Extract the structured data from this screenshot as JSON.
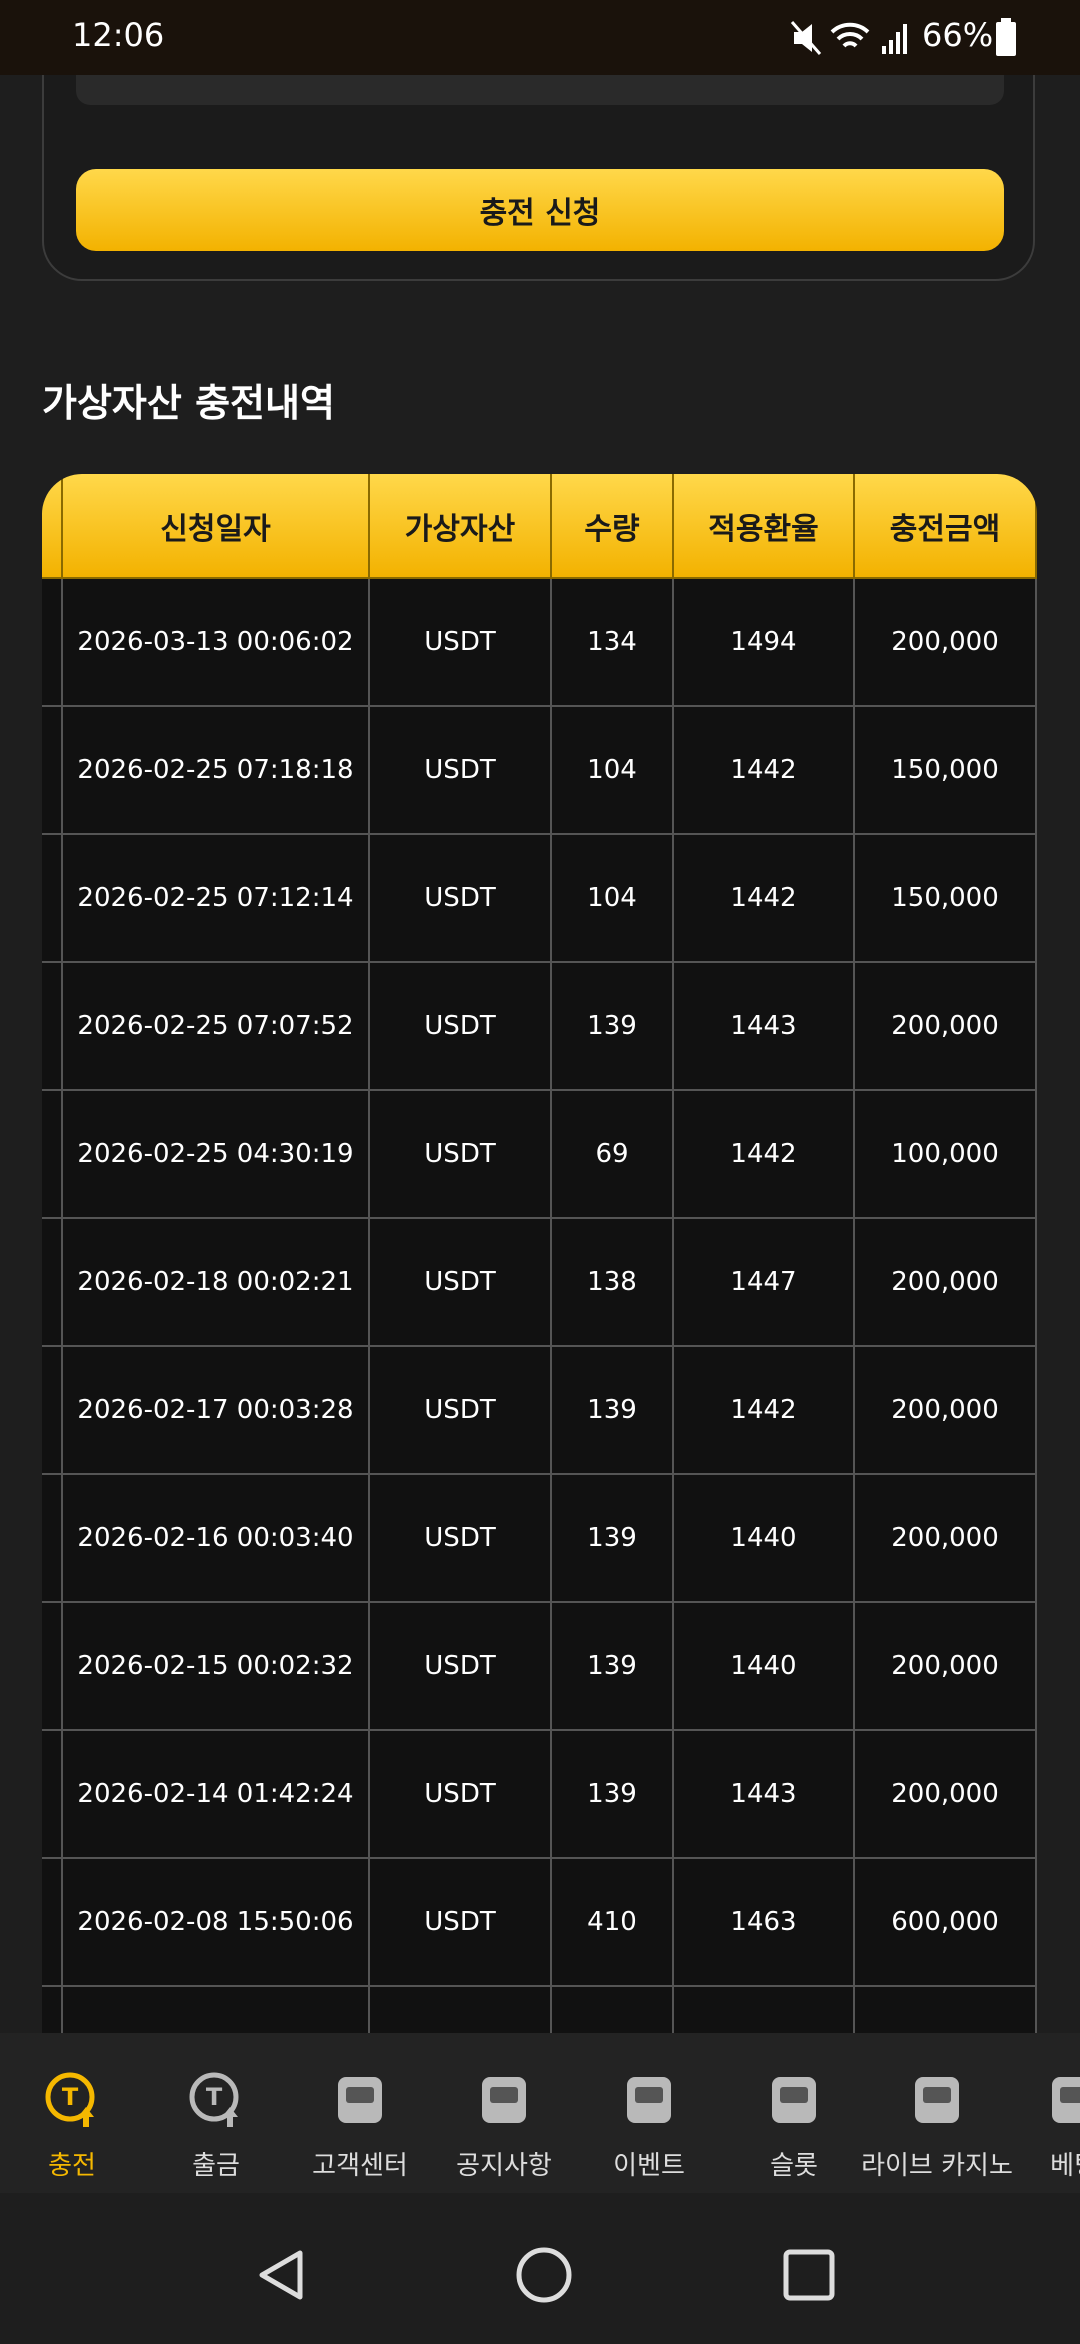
{
  "status": {
    "time": "12:06",
    "battery": "66%"
  },
  "button": "충전 신청",
  "heading": "가상자산 충전내역",
  "table": {
    "headers": [
      "신청일자",
      "가상자산",
      "수량",
      "적용환율",
      "충전금액"
    ],
    "rows": [
      [
        "2026-03-13 00:06:02",
        "USDT",
        "134",
        "1494",
        "200,000"
      ],
      [
        "2026-02-25 07:18:18",
        "USDT",
        "104",
        "1442",
        "150,000"
      ],
      [
        "2026-02-25 07:12:14",
        "USDT",
        "104",
        "1442",
        "150,000"
      ],
      [
        "2026-02-25 07:07:52",
        "USDT",
        "139",
        "1443",
        "200,000"
      ],
      [
        "2026-02-25 04:30:19",
        "USDT",
        "69",
        "1442",
        "100,000"
      ],
      [
        "2026-02-18 00:02:21",
        "USDT",
        "138",
        "1447",
        "200,000"
      ],
      [
        "2026-02-17 00:03:28",
        "USDT",
        "139",
        "1442",
        "200,000"
      ],
      [
        "2026-02-16 00:03:40",
        "USDT",
        "139",
        "1440",
        "200,000"
      ],
      [
        "2026-02-15 00:02:32",
        "USDT",
        "139",
        "1440",
        "200,000"
      ],
      [
        "2026-02-14 01:42:24",
        "USDT",
        "139",
        "1443",
        "200,000"
      ],
      [
        "2026-02-08 15:50:06",
        "USDT",
        "410",
        "1463",
        "600,000"
      ]
    ]
  },
  "nav": [
    "충전",
    "출금",
    "고객센터",
    "공지사항",
    "이벤트",
    "슬롯",
    "라이브 카지노",
    "베팅"
  ]
}
